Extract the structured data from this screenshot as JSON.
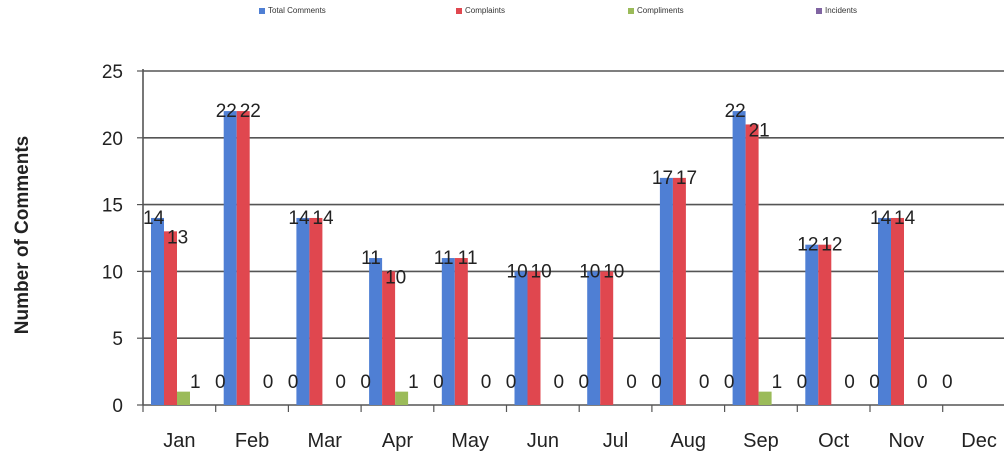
{
  "chart_data": {
    "type": "bar",
    "title": "",
    "xlabel": "",
    "ylabel": "Number of Comments",
    "ylim": [
      0,
      25
    ],
    "yticks": [
      0,
      5,
      10,
      15,
      20,
      25
    ],
    "grid": true,
    "legend_position": "top",
    "categories": [
      "Jan",
      "Feb",
      "Mar",
      "Apr",
      "May",
      "Jun",
      "Jul",
      "Aug",
      "Sep",
      "Oct",
      "Nov",
      "Dec"
    ],
    "series": [
      {
        "name": "Total Comments",
        "color": "#4f7fd4",
        "values": [
          14,
          22,
          14,
          11,
          11,
          10,
          10,
          17,
          22,
          12,
          14,
          null
        ]
      },
      {
        "name": "Complaints",
        "color": "#e0474f",
        "values": [
          13,
          22,
          14,
          10,
          11,
          10,
          10,
          17,
          21,
          12,
          14,
          null
        ]
      },
      {
        "name": "Compliments",
        "color": "#9bbb59",
        "values": [
          1,
          0,
          0,
          1,
          0,
          0,
          0,
          0,
          1,
          0,
          0,
          null
        ]
      },
      {
        "name": "Incidents",
        "color": "#8064a2",
        "values": [
          0,
          0,
          0,
          0,
          0,
          0,
          0,
          0,
          0,
          0,
          0,
          null
        ]
      }
    ]
  }
}
